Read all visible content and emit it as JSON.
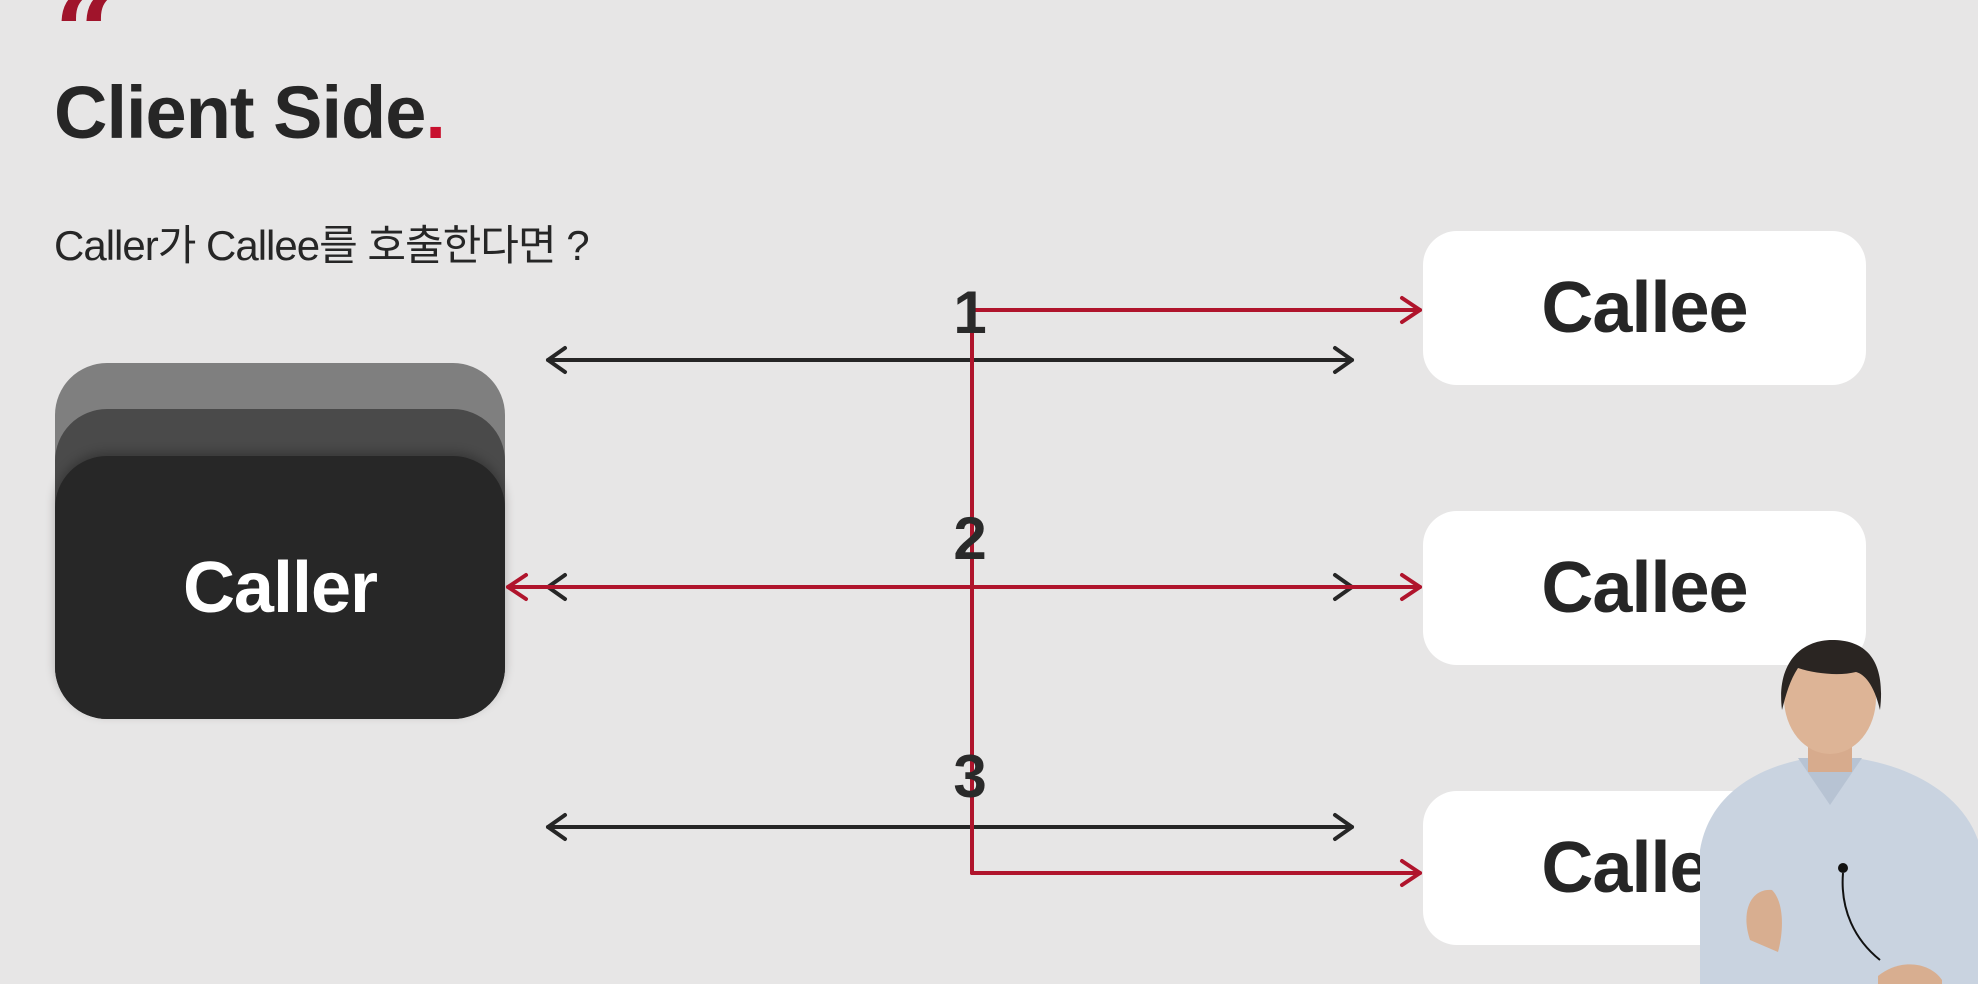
{
  "slide": {
    "quote_mark": "“",
    "title": "Client Side",
    "title_dot": ".",
    "subtitle": "Caller가 Callee를 호출한다면 ?"
  },
  "diagram": {
    "caller_label": "Caller",
    "callee_labels": [
      "Callee",
      "Callee",
      "Callee"
    ],
    "step_numbers": [
      "1",
      "2",
      "3"
    ]
  },
  "colors": {
    "background": "#e7e6e6",
    "accent_red": "#b0142c",
    "arrow_dark": "#262626",
    "caller_dark": "#272727",
    "callee_white": "#ffffff"
  }
}
